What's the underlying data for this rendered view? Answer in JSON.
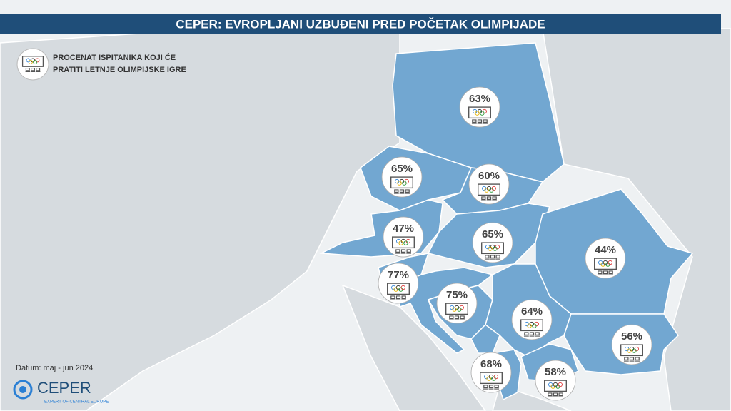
{
  "header": {
    "title": "CEPER: EVROPLJANI UZBUĐENI PRED POČETAK OLIMPIJADE"
  },
  "legend": {
    "lines": [
      "PROCENAT ISPITANIKA KOJI ĆE",
      "PRATITI LETNJE OLIMPIJSKE IGRE"
    ]
  },
  "markers": [
    {
      "value": 63,
      "label": "63%"
    },
    {
      "value": 65,
      "label": "65%"
    },
    {
      "value": 60,
      "label": "60%"
    },
    {
      "value": 47,
      "label": "47%"
    },
    {
      "value": 65,
      "label": "65%"
    },
    {
      "value": 44,
      "label": "44%"
    },
    {
      "value": 77,
      "label": "77%"
    },
    {
      "value": 75,
      "label": "75%"
    },
    {
      "value": 64,
      "label": "64%"
    },
    {
      "value": 56,
      "label": "56%"
    },
    {
      "value": 68,
      "label": "68%"
    },
    {
      "value": 58,
      "label": "58%"
    }
  ],
  "footer": {
    "date": "Datum: maj - jun 2024",
    "logo": "CEPER",
    "tagline": "EXPERT OF CENTRAL EUROPE"
  }
}
